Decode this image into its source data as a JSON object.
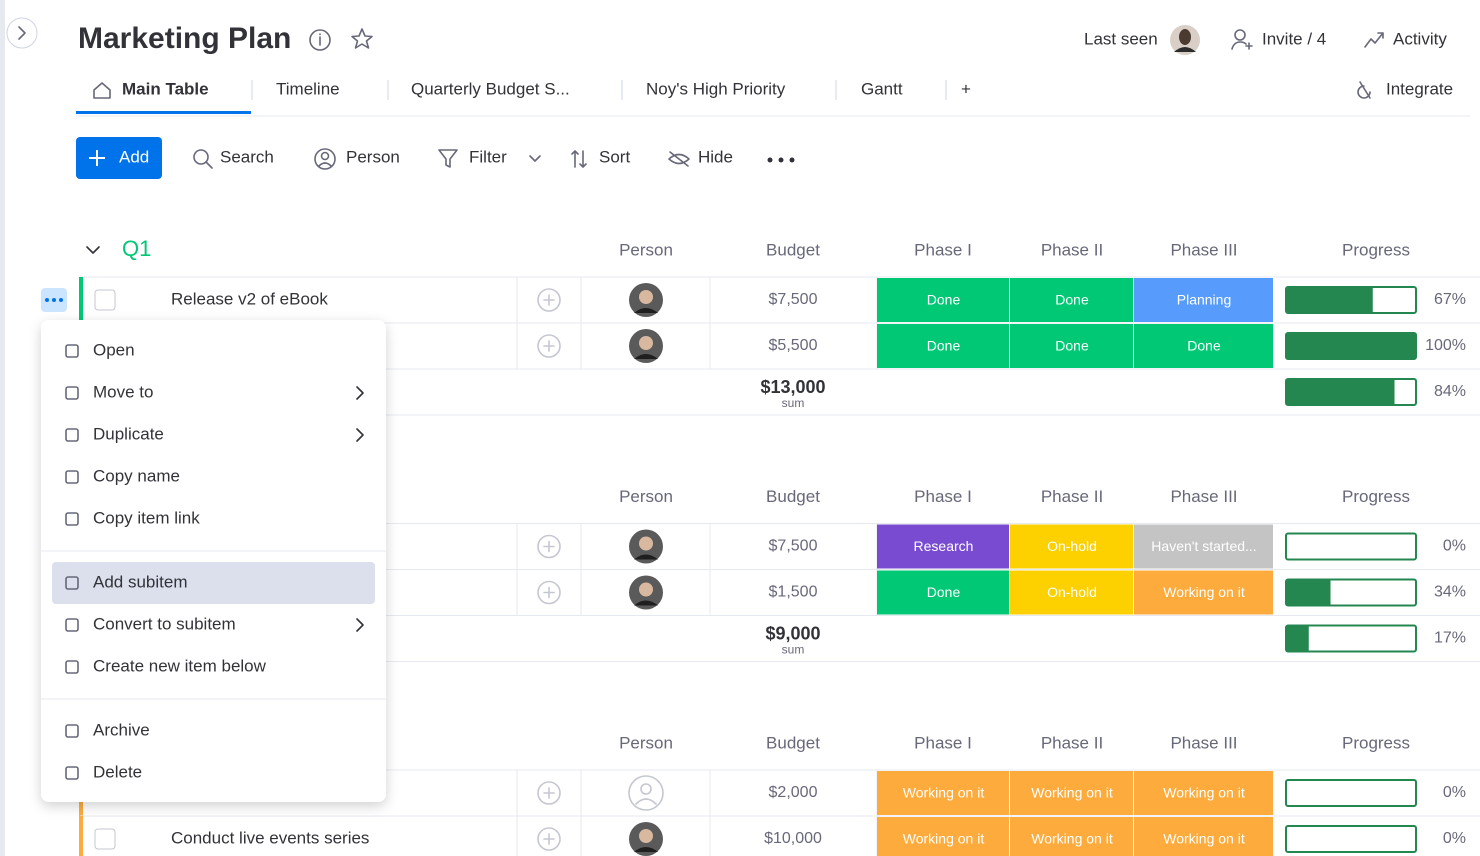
{
  "header": {
    "title": "Marketing Plan",
    "last_seen": "Last seen",
    "invite": "Invite / 4",
    "activity": "Activity"
  },
  "tabs": {
    "items": [
      "Main Table",
      "Timeline",
      "Quarterly Budget S...",
      "Noy's High Priority",
      "Gantt",
      "+"
    ],
    "active": 0,
    "integrate": "Integrate"
  },
  "toolbar": {
    "add": "Add",
    "search": "Search",
    "person": "Person",
    "filter": "Filter",
    "sort": "Sort",
    "hide": "Hide"
  },
  "groups": [
    {
      "name": "Q1",
      "color": "#00c875",
      "columns": [
        "Person",
        "Budget",
        "Phase I",
        "Phase II",
        "Phase III",
        "Progress"
      ],
      "rows": [
        {
          "name": "Release v2 of eBook",
          "assigned": true,
          "budget": "$7,500",
          "phases": [
            {
              "label": "Done",
              "color": "#00c875"
            },
            {
              "label": "Done",
              "color": "#00c875"
            },
            {
              "label": "Planning",
              "color": "#579bfc"
            }
          ],
          "progress": 67,
          "progress_label": "67%"
        },
        {
          "assigned": true,
          "budget": "$5,500",
          "phases": [
            {
              "label": "Done",
              "color": "#00c875"
            },
            {
              "label": "Done",
              "color": "#00c875"
            },
            {
              "label": "Done",
              "color": "#00c875"
            }
          ],
          "progress": 100,
          "progress_label": "100%"
        }
      ],
      "summary": {
        "budget": "$13,000",
        "label": "sum",
        "progress": 84,
        "progress_label": "84%"
      }
    },
    {
      "columns": [
        "Person",
        "Budget",
        "Phase I",
        "Phase II",
        "Phase III",
        "Progress"
      ],
      "rows": [
        {
          "assigned": true,
          "budget": "$7,500",
          "phases": [
            {
              "label": "Research",
              "color": "#784bd1"
            },
            {
              "label": "On-hold",
              "color": "#fdd000"
            },
            {
              "label": "Haven't started...",
              "color": "#c4c4c4"
            }
          ],
          "progress": 0,
          "progress_label": "0%"
        },
        {
          "assigned": true,
          "budget": "$1,500",
          "phases": [
            {
              "label": "Done",
              "color": "#00c875"
            },
            {
              "label": "On-hold",
              "color": "#fdd000"
            },
            {
              "label": "Working on it",
              "color": "#fdab3d"
            }
          ],
          "progress": 34,
          "progress_label": "34%"
        }
      ],
      "summary": {
        "budget": "$9,000",
        "label": "sum",
        "progress": 17,
        "progress_label": "17%"
      }
    },
    {
      "color": "#fdab3d",
      "columns": [
        "Person",
        "Budget",
        "Phase I",
        "Phase II",
        "Phase III",
        "Progress"
      ],
      "rows": [
        {
          "assigned": false,
          "budget": "$2,000",
          "phases": [
            {
              "label": "Working on it",
              "color": "#fdab3d"
            },
            {
              "label": "Working on it",
              "color": "#fdab3d"
            },
            {
              "label": "Working on it",
              "color": "#fdab3d"
            }
          ],
          "progress": 0,
          "progress_label": "0%"
        },
        {
          "name": "Conduct live events series",
          "assigned": true,
          "budget": "$10,000",
          "phases": [
            {
              "label": "Working on it",
              "color": "#fdab3d"
            },
            {
              "label": "Working on it",
              "color": "#fdab3d"
            },
            {
              "label": "Working on it",
              "color": "#fdab3d"
            }
          ],
          "progress": 0,
          "progress_label": "0%"
        }
      ]
    }
  ],
  "menu": {
    "sections": [
      [
        {
          "label": "Open"
        },
        {
          "label": "Move to",
          "submenu": true
        },
        {
          "label": "Duplicate",
          "submenu": true
        },
        {
          "label": "Copy name"
        },
        {
          "label": "Copy item link"
        }
      ],
      [
        {
          "label": "Add subitem",
          "highlighted": true
        },
        {
          "label": "Convert to subitem",
          "submenu": true
        },
        {
          "label": "Create new item below"
        }
      ],
      [
        {
          "label": "Archive"
        },
        {
          "label": "Delete"
        }
      ]
    ]
  }
}
